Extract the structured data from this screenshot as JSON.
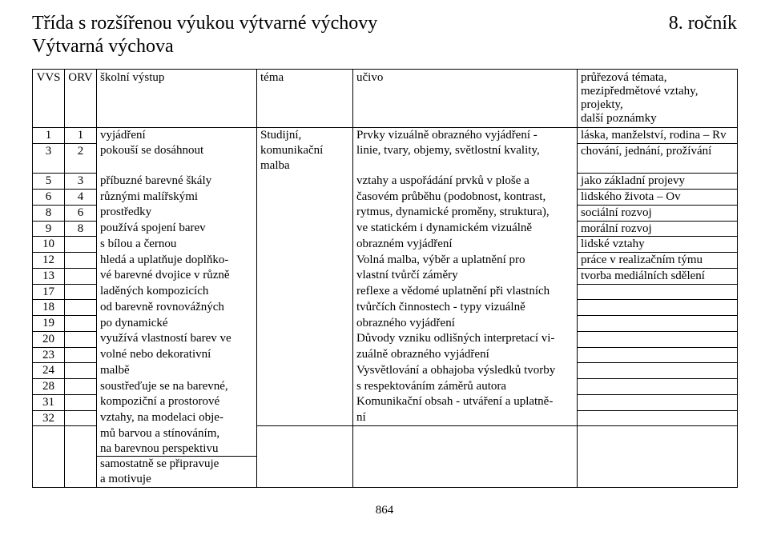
{
  "header": {
    "title": "Třída s rozšířenou výukou výtvarné výchovy",
    "subtitle": "Výtvarná výchova",
    "grade": "8. ročník"
  },
  "columns": {
    "vvs": "VVS",
    "orv": "ORV",
    "vystup": "školní výstup",
    "tema": "téma",
    "ucivo": "učivo",
    "poznamky_l1": "průřezová témata,",
    "poznamky_l2": "mezipředmětové vztahy,",
    "poznamky_l3": "projekty,",
    "poznamky_l4": "další poznámky"
  },
  "rows": [
    {
      "vvs": "1",
      "orv": "1",
      "vystup": "vyjádření",
      "tema": "Studijní,",
      "ucivo": "Prvky vizuálně obrazného vyjádření -",
      "pozn": "láska, manželství, rodina – Rv"
    },
    {
      "vvs": "3",
      "orv": "2",
      "vystup": "pokouší se dosáhnout",
      "tema": "komunikační malba",
      "ucivo": "linie, tvary, objemy, světlostní kvality,",
      "pozn": "chování, jednání, prožívání"
    },
    {
      "vvs": "5",
      "orv": "3",
      "vystup": "příbuzné barevné škály",
      "tema": "",
      "ucivo": "vztahy a uspořádání prvků v ploše a",
      "pozn": "jako základní projevy"
    },
    {
      "vvs": "6",
      "orv": "4",
      "vystup": "různými malířskými",
      "tema": "",
      "ucivo": "časovém průběhu (podobnost, kontrast,",
      "pozn": "lidského života – Ov"
    },
    {
      "vvs": "8",
      "orv": "6",
      "vystup": "prostředky",
      "tema": "",
      "ucivo": "rytmus, dynamické proměny, struktura),",
      "pozn": "sociální rozvoj"
    },
    {
      "vvs": "9",
      "orv": "8",
      "vystup": "používá spojení barev",
      "tema": "",
      "ucivo": "ve statickém i dynamickém vizuálně",
      "pozn": "morální rozvoj"
    },
    {
      "vvs": "10",
      "orv": "",
      "vystup": "s bílou a černou",
      "tema": "",
      "ucivo": "obrazném vyjádření",
      "pozn": "lidské vztahy"
    },
    {
      "vvs": "12",
      "orv": "",
      "vystup": "hledá a uplatňuje doplňko-",
      "tema": "",
      "ucivo": "Volná malba, výběr a uplatnění pro",
      "pozn": "práce v realizačním týmu"
    },
    {
      "vvs": "13",
      "orv": "",
      "vystup": "vé barevné dvojice v různě",
      "tema": "",
      "ucivo": "vlastní tvůrčí záměry",
      "pozn": "tvorba mediálních sdělení"
    },
    {
      "vvs": "17",
      "orv": "",
      "vystup": "laděných kompozicích",
      "tema": "",
      "ucivo": "reflexe a vědomé uplatnění při vlastních",
      "pozn": ""
    },
    {
      "vvs": "18",
      "orv": "",
      "vystup": "od barevně rovnovážných",
      "tema": "",
      "ucivo": "tvůrčích činnostech - typy vizuálně",
      "pozn": ""
    },
    {
      "vvs": "19",
      "orv": "",
      "vystup": "po dynamické",
      "tema": "",
      "ucivo": "obrazného vyjádření",
      "pozn": ""
    },
    {
      "vvs": "20",
      "orv": "",
      "vystup": "využívá vlastností barev ve",
      "tema": "",
      "ucivo": "Důvody vzniku odlišných interpretací vi-",
      "pozn": ""
    },
    {
      "vvs": "23",
      "orv": "",
      "vystup": "volné nebo dekorativní",
      "tema": "",
      "ucivo": "zuálně obrazného vyjádření",
      "pozn": ""
    },
    {
      "vvs": "24",
      "orv": "",
      "vystup": "malbě",
      "tema": "",
      "ucivo": "Vysvětlování a obhajoba výsledků tvorby",
      "pozn": ""
    },
    {
      "vvs": "28",
      "orv": "",
      "vystup": "soustřeďuje se na barevné,",
      "tema": "",
      "ucivo": "s respektováním záměrů autora",
      "pozn": ""
    },
    {
      "vvs": "31",
      "orv": "",
      "vystup": "kompoziční a prostorové",
      "tema": "",
      "ucivo": "Komunikační obsah - utváření  a uplatně-",
      "pozn": ""
    },
    {
      "vvs": "32",
      "orv": "",
      "vystup": "vztahy, na modelaci obje-",
      "tema": "",
      "ucivo": "ní",
      "pozn": ""
    }
  ],
  "trailing_vystup": [
    "mů barvou a stínováním,",
    "na barevnou perspektivu",
    "samostatně se připravuje",
    "a motivuje"
  ],
  "page_number": "864"
}
